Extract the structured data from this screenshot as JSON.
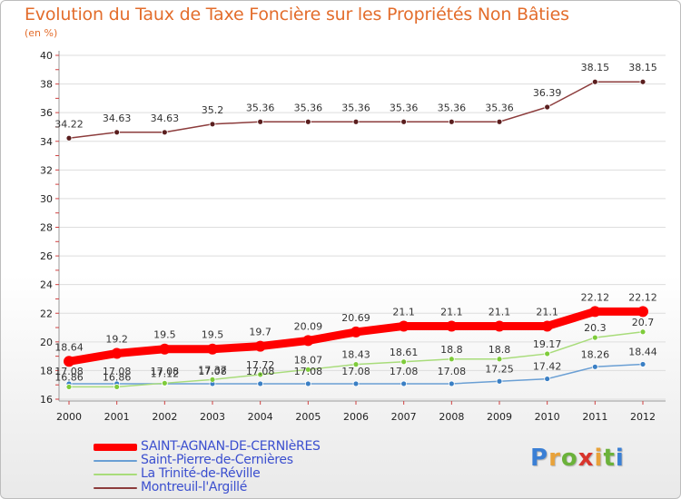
{
  "chart_data": {
    "type": "line",
    "title": "Evolution du Taux de Taxe Foncière sur les Propriétés Non Bâties",
    "ylabel": "(en %)",
    "xlabel": "",
    "ylim": [
      16,
      40
    ],
    "yticks": [
      16,
      18,
      20,
      22,
      24,
      26,
      28,
      30,
      32,
      34,
      36,
      38,
      40
    ],
    "categories": [
      "2000",
      "2001",
      "2002",
      "2003",
      "2004",
      "2005",
      "2006",
      "2007",
      "2008",
      "2009",
      "2010",
      "2011",
      "2012"
    ],
    "series": [
      {
        "name": "SAINT-AGNAN-DE-CERNIèRES",
        "color": "#ff0000",
        "values": [
          18.64,
          19.2,
          19.5,
          19.5,
          19.7,
          20.09,
          20.69,
          21.1,
          21.1,
          21.1,
          21.1,
          22.12,
          22.12
        ],
        "labels": [
          "18.64",
          "19.2",
          "19.5",
          "19.5",
          "19.7",
          "20.09",
          "20.69",
          "21.1",
          "21.1",
          "21.1",
          "21.1",
          "22.12",
          "22.12"
        ]
      },
      {
        "name": "Saint-Pierre-de-Cernières",
        "color": "#6a9fd4",
        "values": [
          17.08,
          17.08,
          17.08,
          17.08,
          17.08,
          17.08,
          17.08,
          17.08,
          17.08,
          17.25,
          17.42,
          18.26,
          18.44
        ],
        "labels": [
          "17.08",
          "17.08",
          "17.08",
          "17.08",
          "17.08",
          "17.08",
          "17.08",
          "17.08",
          "17.08",
          "17.25",
          "17.42",
          "18.26",
          "18.44"
        ]
      },
      {
        "name": "La Trinité-de-Réville",
        "color": "#a8dc7a",
        "values": [
          16.86,
          16.86,
          17.12,
          17.37,
          17.72,
          18.07,
          18.43,
          18.61,
          18.8,
          18.8,
          19.17,
          20.3,
          20.7
        ],
        "labels": [
          "16.86",
          "16.86",
          "17.12",
          "17.37",
          "17.72",
          "18.07",
          "18.43",
          "18.61",
          "18.8",
          "18.8",
          "19.17",
          "20.3",
          "20.7"
        ]
      },
      {
        "name": "Montreuil-l'Argillé",
        "color": "#8c3c3c",
        "values": [
          34.22,
          34.63,
          34.63,
          35.2,
          35.36,
          35.36,
          35.36,
          35.36,
          35.36,
          35.36,
          36.39,
          38.15,
          38.15
        ],
        "labels": [
          "34.22",
          "34.63",
          "34.63",
          "35.2",
          "35.36",
          "35.36",
          "35.36",
          "35.36",
          "35.36",
          "35.36",
          "36.39",
          "38.15",
          "38.15"
        ]
      }
    ]
  },
  "logo": {
    "text": "Proxiti"
  }
}
